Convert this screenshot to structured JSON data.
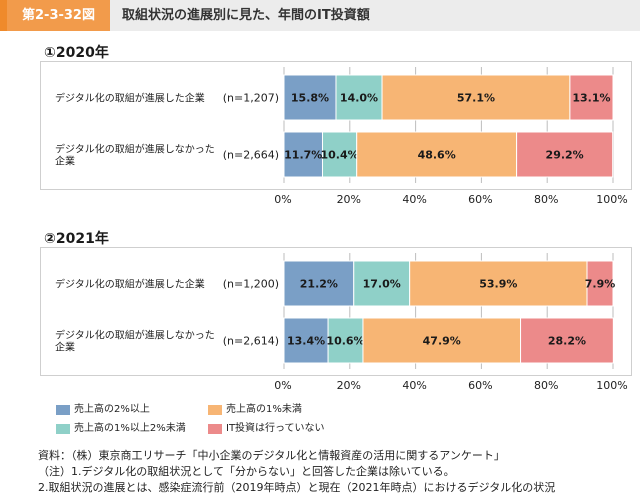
{
  "header": {
    "tag": "第2-3-32図",
    "title": "取組状況の進展別に見た、年間のIT投資額"
  },
  "colors": {
    "accent": "#ef8a2b",
    "tag_bg": "#f29b4b",
    "seg1": "#7a9fc6",
    "seg2": "#8fd0c8",
    "seg3": "#f7b574",
    "seg4": "#ec8a8a",
    "grid": "#bdbdbd"
  },
  "chart_data": [
    {
      "type": "bar",
      "title": "①2020年",
      "categories": [
        "デジタル化の取組が進展した企業",
        "デジタル化の取組が進展しなかった企業"
      ],
      "category_lines": [
        [
          "デジタル化の取組が進展した企業"
        ],
        [
          "デジタル化の取組が進展しなかった",
          "企業"
        ]
      ],
      "n_labels": [
        "(n=1,207)",
        "(n=2,664)"
      ],
      "series": [
        {
          "name": "売上高の2%以上",
          "values": [
            15.8,
            11.7
          ],
          "labels": [
            "15.8%",
            "11.7%"
          ]
        },
        {
          "name": "売上高の1%以上2%未満",
          "values": [
            14.0,
            10.4
          ],
          "labels": [
            "14.0%",
            "10.4%"
          ]
        },
        {
          "name": "売上高の1%未満",
          "values": [
            57.1,
            48.6
          ],
          "labels": [
            "57.1%",
            "48.6%"
          ]
        },
        {
          "name": "IT投資は行っていない",
          "values": [
            13.1,
            29.2
          ],
          "labels": [
            "13.1%",
            "29.2%"
          ]
        }
      ],
      "stacked": true,
      "orientation": "horizontal",
      "xlim": [
        0,
        100
      ],
      "ticks": [
        "0%",
        "20%",
        "40%",
        "60%",
        "80%",
        "100%"
      ],
      "grid": true
    },
    {
      "type": "bar",
      "title": "②2021年",
      "categories": [
        "デジタル化の取組が進展した企業",
        "デジタル化の取組が進展しなかった企業"
      ],
      "category_lines": [
        [
          "デジタル化の取組が進展した企業"
        ],
        [
          "デジタル化の取組が進展しなかった",
          "企業"
        ]
      ],
      "n_labels": [
        "(n=1,200)",
        "(n=2,614)"
      ],
      "series": [
        {
          "name": "売上高の2%以上",
          "values": [
            21.2,
            13.4
          ],
          "labels": [
            "21.2%",
            "13.4%"
          ]
        },
        {
          "name": "売上高の1%以上2%未満",
          "values": [
            17.0,
            10.6
          ],
          "labels": [
            "17.0%",
            "10.6%"
          ]
        },
        {
          "name": "売上高の1%未満",
          "values": [
            53.9,
            47.9
          ],
          "labels": [
            "53.9%",
            "47.9%"
          ]
        },
        {
          "name": "IT投資は行っていない",
          "values": [
            7.9,
            28.2
          ],
          "labels": [
            "7.9%",
            "28.2%"
          ]
        }
      ],
      "stacked": true,
      "orientation": "horizontal",
      "xlim": [
        0,
        100
      ],
      "ticks": [
        "0%",
        "20%",
        "40%",
        "60%",
        "80%",
        "100%"
      ],
      "grid": true
    }
  ],
  "legend": [
    "売上高の2%以上",
    "売上高の1%未満",
    "売上高の1%以上2%未満",
    "IT投資は行っていない"
  ],
  "notes": [
    "資料：（株）東京商工リサーチ「中小企業のデジタル化と情報資産の活用に関するアンケート」",
    "（注）1.デジタル化の取組状況として「分からない」と回答した企業は除いている。",
    "2.取組状況の進展とは、感染症流行前（2019年時点）と現在（2021年時点）におけるデジタル化の状況"
  ]
}
